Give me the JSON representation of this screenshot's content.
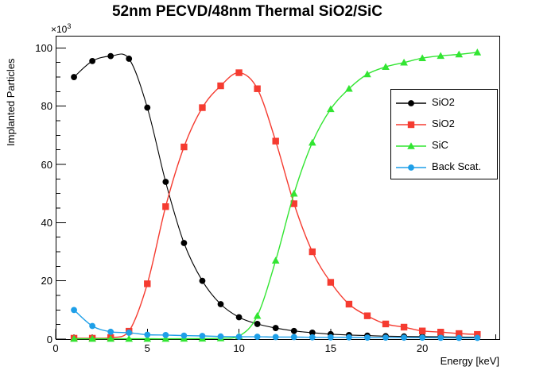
{
  "title": "52nm PECVD/48nm Thermal SiO2/SiC",
  "axes": {
    "xlabel": "Energy [keV]",
    "ylabel": "Implanted Particles",
    "y_exponent_base": "×10",
    "y_exponent_sup": "3",
    "x_tick_values": [
      0,
      5,
      10,
      15,
      20
    ],
    "x_tick_labels": [
      "0",
      "5",
      "10",
      "15",
      "20"
    ],
    "x_minor_step": 1,
    "y_tick_values": [
      0,
      20,
      40,
      60,
      80,
      100
    ],
    "y_tick_labels": [
      "0",
      "20",
      "40",
      "60",
      "80",
      "100"
    ],
    "y_minor_step": 5,
    "xlim": [
      0,
      24.2
    ],
    "ylim": [
      0,
      104.2
    ]
  },
  "chart_data": {
    "type": "line",
    "title": "52nm PECVD/48nm Thermal SiO2/SiC",
    "xlabel": "Energy [keV]",
    "ylabel": "Implanted Particles",
    "y_unit_scale": "×10³",
    "xlim": [
      0,
      24.2
    ],
    "ylim": [
      0,
      104.2
    ],
    "grid": false,
    "legend_position": "middle-right",
    "x": [
      1,
      2,
      3,
      4,
      5,
      6,
      7,
      8,
      9,
      10,
      11,
      12,
      13,
      14,
      15,
      16,
      17,
      18,
      19,
      20,
      21,
      22,
      23
    ],
    "series": [
      {
        "name": "SiO2",
        "color": "#000000",
        "marker": "circle",
        "values": [
          90,
          95.5,
          97.2,
          96.3,
          79.5,
          54,
          33,
          20,
          12,
          7.5,
          5.2,
          3.8,
          2.8,
          2.2,
          1.7,
          1.4,
          1.2,
          1.0,
          0.9,
          0.85,
          0.8,
          0.7,
          0.65
        ]
      },
      {
        "name": "SiO2",
        "color": "#f53b30",
        "marker": "square",
        "values": [
          0.3,
          0.3,
          0.5,
          2.7,
          19,
          45.5,
          66,
          79.5,
          87,
          91.5,
          86,
          68,
          46.5,
          30,
          19.5,
          12,
          8,
          5.2,
          4.1,
          2.8,
          2.4,
          1.9,
          1.6
        ]
      },
      {
        "name": "SiC",
        "color": "#32e532",
        "marker": "triangle",
        "values": [
          0.1,
          0.1,
          0.1,
          0.1,
          0.1,
          0.1,
          0.15,
          0.2,
          0.3,
          1,
          8,
          27,
          50,
          67.5,
          79,
          86,
          91,
          93.5,
          95,
          96.5,
          97.3,
          97.8,
          98.5
        ]
      },
      {
        "name": "Back Scat.",
        "color": "#1e9fe8",
        "marker": "circle",
        "values": [
          10,
          4.5,
          2.5,
          2.2,
          1.5,
          1.4,
          1.2,
          1.1,
          0.9,
          0.8,
          0.8,
          0.7,
          0.7,
          0.6,
          0.6,
          0.6,
          0.5,
          0.5,
          0.5,
          0.5,
          0.45,
          0.4,
          0.4
        ]
      }
    ]
  }
}
